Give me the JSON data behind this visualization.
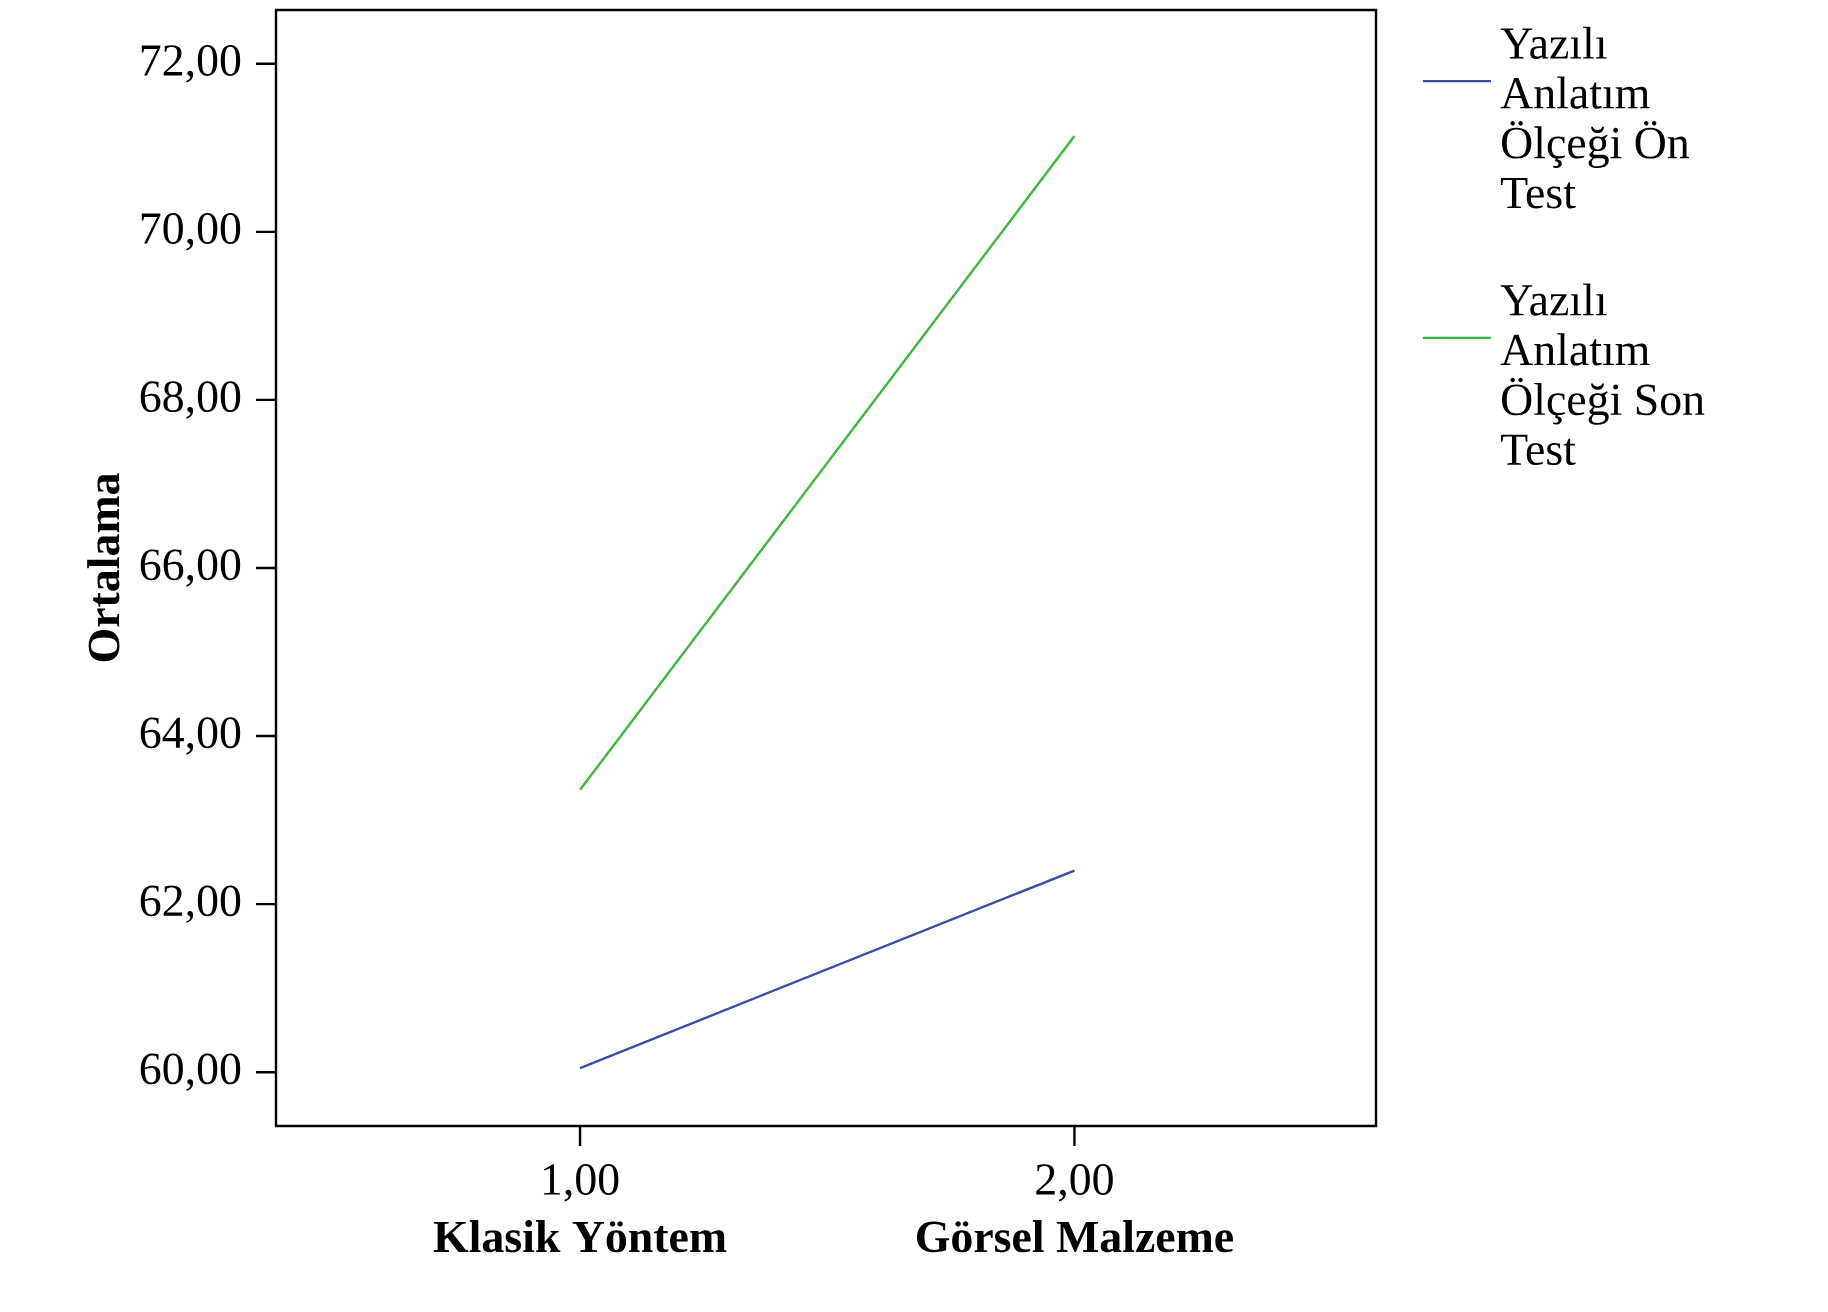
{
  "chart_data": {
    "type": "line",
    "ylabel": "Ortalama",
    "x": [
      1,
      2
    ],
    "xlim": [
      0.385,
      2.61
    ],
    "xticks": [
      {
        "value": 1,
        "label": "1,00"
      },
      {
        "value": 2,
        "label": "2,00"
      }
    ],
    "ylim": [
      59.36,
      72.64
    ],
    "yticks": [
      {
        "value": 60,
        "label": "60,00"
      },
      {
        "value": 62,
        "label": "62,00"
      },
      {
        "value": 64,
        "label": "64,00"
      },
      {
        "value": 66,
        "label": "66,00"
      },
      {
        "value": 68,
        "label": "68,00"
      },
      {
        "value": 70,
        "label": "70,00"
      },
      {
        "value": 72,
        "label": "72,00"
      }
    ],
    "series": [
      {
        "name": "Yazılı Anlatım Ölçeği Ön Test",
        "color": "#3c4fa8",
        "values": [
          60.05,
          62.4
        ]
      },
      {
        "name": "Yazılı Anlatım Ölçeği Son Test",
        "color": "#3cb83c",
        "values": [
          63.36,
          71.14
        ]
      }
    ],
    "annotations": [
      "Klasik Yöntem",
      "Görsel Malzeme"
    ],
    "legend": "right",
    "grid": false,
    "marker": "none",
    "line_style": "solid"
  }
}
